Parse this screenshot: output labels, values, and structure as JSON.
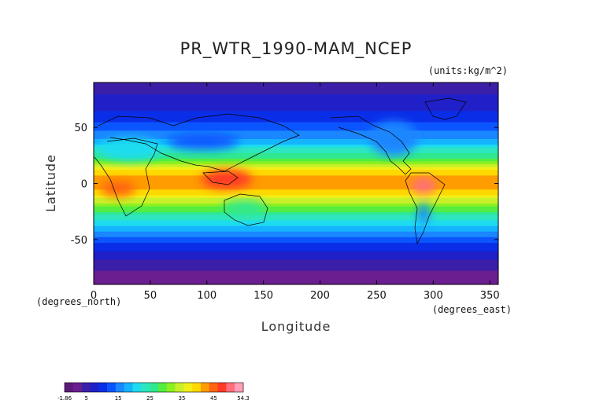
{
  "chart_data": {
    "type": "heatmap",
    "title": "PR_WTR_1990-MAM_NCEP",
    "units_label": "(units:kg/m^2)",
    "xlabel": "Longitude",
    "ylabel": "Latitude",
    "x_unit_label": "(degrees_east)",
    "y_unit_label": "(degrees_north)",
    "xlim": [
      0,
      357.5
    ],
    "ylim": [
      -90,
      90
    ],
    "xticks": [
      "0",
      "50",
      "100",
      "150",
      "200",
      "250",
      "300",
      "350"
    ],
    "yticks": [
      "50",
      "0",
      "-50"
    ],
    "grid": false,
    "colorbar": {
      "min": -1.86,
      "max": 54.3,
      "tick_labels": [
        "-1.86",
        "5",
        "15",
        "25",
        "35",
        "45",
        "54.3"
      ],
      "colors": [
        "#5a1a7a",
        "#6b1e8f",
        "#3b1fa8",
        "#2020c8",
        "#0a2ee8",
        "#0b55ff",
        "#1a86ff",
        "#14b4ff",
        "#1edcf0",
        "#2de6c0",
        "#30e890",
        "#55ee40",
        "#8df020",
        "#c8f028",
        "#f2ee18",
        "#ffd800",
        "#ff9c00",
        "#ff6410",
        "#ff3b26",
        "#ff6e7c",
        "#ffa0b8"
      ]
    },
    "zonal_mean_profile": {
      "latitude": [
        -90,
        -80,
        -70,
        -60,
        -50,
        -40,
        -30,
        -20,
        -10,
        0,
        10,
        20,
        30,
        40,
        50,
        60,
        70,
        80,
        90
      ],
      "value": [
        1,
        3,
        5,
        9,
        13,
        18,
        24,
        31,
        38,
        44,
        40,
        30,
        23,
        17,
        13,
        10,
        8,
        6,
        5
      ]
    }
  }
}
